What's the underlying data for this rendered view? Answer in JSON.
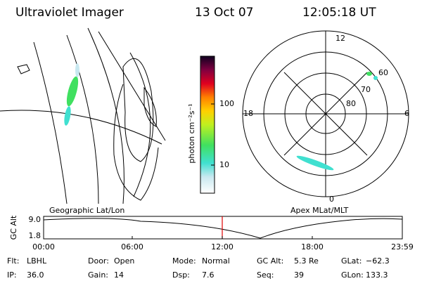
{
  "header": {
    "title": "Ultraviolet Imager",
    "date": "13 Oct 07",
    "time": "12:05:18 UT"
  },
  "panels": {
    "left": "Geographic Lat/Lon",
    "right": "Apex MLat/MLT"
  },
  "colorbar": {
    "label": "photon cm⁻²s⁻¹",
    "ticks": [
      "100",
      "10"
    ]
  },
  "polar": {
    "mlt": [
      "12",
      "18",
      "6",
      "0"
    ],
    "lat": [
      "60",
      "70",
      "80"
    ]
  },
  "timeline": {
    "label": "GC Alt",
    "yticks": [
      "9.0",
      "1.8"
    ],
    "xticks": [
      "00:00",
      "06:00",
      "12:00",
      "18:00",
      "23:59"
    ]
  },
  "info": [
    [
      {
        "key": "Flt:",
        "val": "LBHL"
      },
      {
        "key": "Door:",
        "val": "Open"
      },
      {
        "key": "Mode:",
        "val": "Normal"
      },
      {
        "key": "GC Alt:",
        "val": "5.3 Re"
      },
      {
        "key": "GLat:",
        "val": "−62.3"
      }
    ],
    [
      {
        "key": "IP:",
        "val": "36.0"
      },
      {
        "key": "Gain:",
        "val": "14"
      },
      {
        "key": "Dsp:",
        "val": "7.6"
      },
      {
        "key": "Seq:",
        "val": "39"
      },
      {
        "key": "GLon:",
        "val": "133.3"
      }
    ]
  ]
}
